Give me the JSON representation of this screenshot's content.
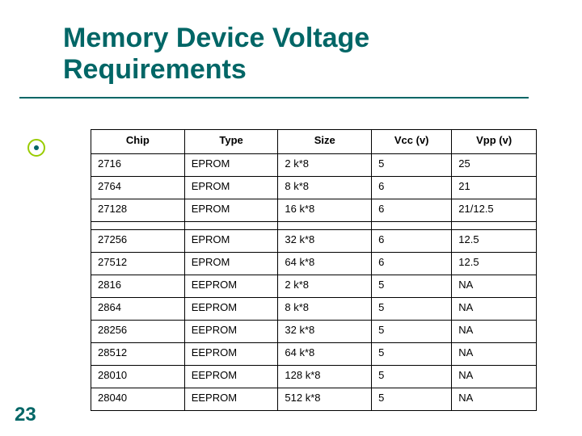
{
  "title_line1": "Memory Device Voltage",
  "title_line2": "Requirements",
  "page_number": "23",
  "colors": {
    "title": "#006666",
    "underline": "#006666",
    "bullet_ring": "#99cc00",
    "bullet_dot": "#006666",
    "border": "#000000",
    "background": "#ffffff",
    "text": "#000000"
  },
  "table": {
    "columns": [
      "Chip",
      "Type",
      "Size",
      "Vcc (v)",
      "Vpp (v)"
    ],
    "column_align": [
      "left",
      "left",
      "left",
      "left",
      "left"
    ],
    "header_align": "center",
    "col_widths_pct": [
      21,
      21,
      21,
      18,
      19
    ],
    "font_size_pt": 10,
    "header_fontweight": "bold",
    "gap_after_row_index": 2,
    "rows": [
      [
        "2716",
        "EPROM",
        "2 k*8",
        "5",
        "25"
      ],
      [
        "2764",
        "EPROM",
        "8 k*8",
        "6",
        "21"
      ],
      [
        "27128",
        "EPROM",
        "16 k*8",
        "6",
        "21/12.5"
      ],
      [
        "27256",
        "EPROM",
        "32 k*8",
        "6",
        "12.5"
      ],
      [
        "27512",
        "EPROM",
        "64 k*8",
        "6",
        "12.5"
      ],
      [
        "2816",
        "EEPROM",
        "2 k*8",
        "5",
        "NA"
      ],
      [
        "2864",
        "EEPROM",
        "8 k*8",
        "5",
        "NA"
      ],
      [
        "28256",
        "EEPROM",
        "32 k*8",
        "5",
        "NA"
      ],
      [
        "28512",
        "EEPROM",
        "64 k*8",
        "5",
        "NA"
      ],
      [
        "28010",
        "EEPROM",
        "128 k*8",
        "5",
        "NA"
      ],
      [
        "28040",
        "EEPROM",
        "512 k*8",
        "5",
        "NA"
      ]
    ]
  }
}
